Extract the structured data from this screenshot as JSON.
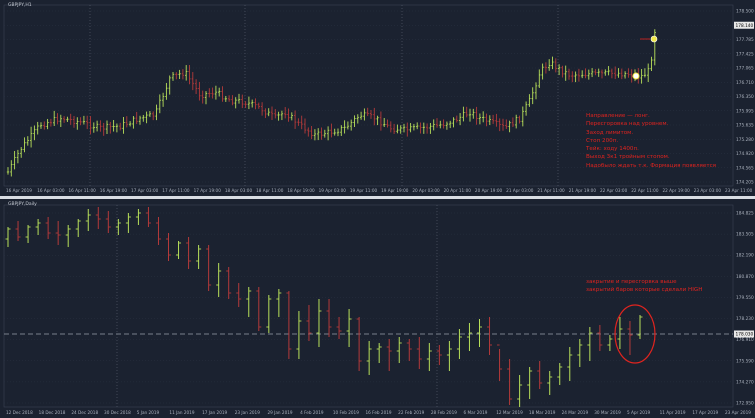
{
  "colors": {
    "background": "#1b2230",
    "grid": "#2a3242",
    "bull": "#b8e05a",
    "bear": "#b43a3a",
    "annotation": "#e0241f",
    "marker": "#f1e84a"
  },
  "top_chart": {
    "label": "GBPJPY,H1",
    "current_price": "178.140",
    "y_ticks": [
      "178.500",
      "178.140",
      "177.785",
      "177.425",
      "177.065",
      "176.710",
      "176.350",
      "175.995",
      "175.635",
      "175.280",
      "174.920",
      "174.565",
      "174.205"
    ],
    "x_ticks": [
      "16 Apr 2019",
      "16 Apr 03:00",
      "16 Apr 11:00",
      "16 Apr 19:00",
      "17 Apr 03:00",
      "17 Apr 11:00",
      "17 Apr 19:00",
      "18 Apr 03:00",
      "18 Apr 11:00",
      "18 Apr 19:00",
      "19 Apr 03:00",
      "19 Apr 11:00",
      "19 Apr 19:00",
      "20 Apr 03:00",
      "20 Apr 11:00",
      "20 Apr 19:00",
      "21 Apr 03:00",
      "21 Apr 11:00",
      "21 Apr 19:00",
      "22 Apr 03:00",
      "22 Apr 11:00",
      "22 Apr 19:00",
      "23 Apr 03:00",
      "23 Apr 11:00"
    ],
    "annotation": [
      "Направление — лонг.",
      "Пересгоровка над уровнем.",
      "Заход лимитом.",
      "Стоп 200п.",
      "Тейк: ходу 1400п.",
      "Выход 3к1 тройным стопом.",
      "Надобыло ждать т.к. Формация появляется"
    ]
  },
  "bottom_chart": {
    "label": "GBPJPY,Daily",
    "current_price": "178.030",
    "y_ticks": [
      "184.825",
      "183.505",
      "182.190",
      "180.870",
      "179.550",
      "178.230",
      "176.910",
      "175.590",
      "174.270",
      "172.950"
    ],
    "x_ticks": [
      "12 Dec 2018",
      "18 Dec 2018",
      "24 Dec 2018",
      "30 Dec 2018",
      "5 Jan 2019",
      "11 Jan 2019",
      "17 Jan 2019",
      "23 Jan 2019",
      "29 Jan 2019",
      "4 Feb 2019",
      "10 Feb 2019",
      "16 Feb 2019",
      "22 Feb 2019",
      "28 Feb 2019",
      "6 Mar 2019",
      "12 Mar 2019",
      "18 Mar 2019",
      "24 Mar 2019",
      "30 Mar 2019",
      "5 Apr 2019",
      "11 Apr 2019",
      "17 Apr 2019",
      "23 Apr 2019"
    ],
    "annotation": [
      "закрытие и пересгорвка выше",
      "закрытий баров которые сделали HIGH"
    ]
  }
}
